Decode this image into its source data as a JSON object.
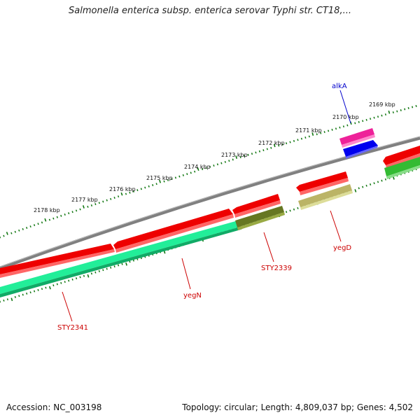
{
  "title": "Salmonella enterica subsp. enterica serovar Typhi str. CT18,...",
  "footer": {
    "accession_label": "Accession:",
    "accession_value": "NC_003198",
    "topology_label": "Topology:",
    "topology_value": "circular",
    "length_label": "Length:",
    "length_value": "4,809,037 bp",
    "genes_label": "Genes:",
    "genes_value": "4,502"
  },
  "tick_labels": [
    "2178 kbp",
    "2177 kbp",
    "2176 kbp",
    "2175 kbp",
    "2174 kbp",
    "2173 kbp",
    "2172 kbp",
    "2171 kbp",
    "2170 kbp",
    "2169 kbp"
  ],
  "gene_labels": [
    {
      "name": "alkA",
      "color": "#0000cc"
    },
    {
      "name": "yegD",
      "color": "#cc0000"
    },
    {
      "name": "STY2339",
      "color": "#cc0000"
    },
    {
      "name": "yegN",
      "color": "#cc0000"
    },
    {
      "name": "STY2341",
      "color": "#cc0000"
    }
  ],
  "colors": {
    "backbone": "#808080",
    "forward_gene": "#ee0000",
    "cds_mint": "#22ee99",
    "cds_olive": "#667722",
    "cds_khaki": "#bbb466",
    "cds_green": "#33bb33",
    "cds_blue": "#0000ee",
    "cds_pink": "#ee2299",
    "ticks": "#117711"
  }
}
